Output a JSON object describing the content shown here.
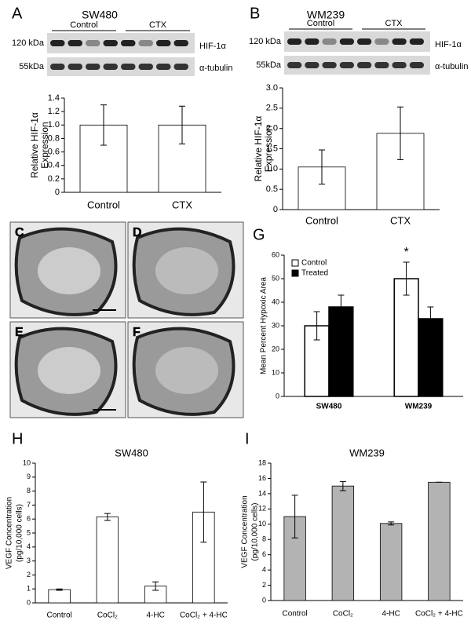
{
  "blots": [
    {
      "label": "A",
      "title": "SW480",
      "groups": [
        "Control",
        "CTX"
      ],
      "markers": [
        "120 kDa",
        "55kDa"
      ],
      "proteins": [
        "HIF-1α",
        "α-tubulin"
      ]
    },
    {
      "label": "B",
      "title": "WM239",
      "groups": [
        "Control",
        "CTX"
      ],
      "markers": [
        "120 kDa",
        "55kDa"
      ],
      "proteins": [
        "HIF-1α",
        "α-tubulin"
      ]
    }
  ],
  "images": [
    {
      "label": "C"
    },
    {
      "label": "D"
    },
    {
      "label": "E"
    },
    {
      "label": "F"
    }
  ],
  "chart_data": [
    {
      "type": "bar",
      "label": "A",
      "ylabel": [
        "Relative HIF-1α",
        "Expression"
      ],
      "categories": [
        "Control",
        "CTX"
      ],
      "values": [
        1.0,
        1.0
      ],
      "errors": [
        0.3,
        0.28
      ],
      "color": "#ffffff",
      "ylim": [
        0,
        1.4
      ],
      "yticks": [
        0,
        0.2,
        0.4,
        0.6,
        0.8,
        {
          "value": 1,
          "label": "1.0"
        },
        1.2,
        1.4
      ]
    },
    {
      "type": "bar",
      "label": "B",
      "ylabel": [
        "Relative HIF-1α",
        "Expression"
      ],
      "categories": [
        "Control",
        "CTX"
      ],
      "values": [
        1.05,
        1.88
      ],
      "errors": [
        0.42,
        0.65
      ],
      "color": "#ffffff",
      "ylim": [
        0,
        3
      ],
      "yticks": [
        0,
        0.5,
        {
          "value": 1,
          "label": "1.0"
        },
        1.5,
        {
          "value": 2,
          "label": "2.0"
        },
        2.5,
        {
          "value": 3,
          "label": "3.0"
        }
      ]
    },
    {
      "type": "bar",
      "label": "G",
      "ylabel": [
        "Mean Percent Hypoxic Area"
      ],
      "categories": [
        "SW480",
        "WM239"
      ],
      "series": [
        {
          "name": "Control",
          "color": "#ffffff",
          "values": [
            30,
            50
          ],
          "errors": [
            6,
            7
          ]
        },
        {
          "name": "Treated",
          "color": "#000000",
          "values": [
            38,
            33
          ],
          "errors": [
            5,
            5
          ]
        }
      ],
      "annotation": "*",
      "legend": "upper left",
      "ylim": [
        0,
        60
      ],
      "yticks": [
        0,
        10,
        20,
        30,
        40,
        50,
        60
      ]
    },
    {
      "type": "bar",
      "label": "H",
      "title": "SW480",
      "ylabel": [
        "VEGF Concentration",
        "(pg/10,000 cells)"
      ],
      "categories": [
        "Control",
        "CoCl₂",
        "4-HC",
        "CoCl₂ + 4-HC"
      ],
      "values": [
        0.95,
        6.15,
        1.2,
        6.5
      ],
      "errors": [
        0.05,
        0.25,
        0.3,
        2.15
      ],
      "color": "#ffffff",
      "ylim": [
        0,
        10
      ],
      "yticks": [
        0,
        1,
        2,
        3,
        4,
        5,
        6,
        7,
        8,
        9,
        10
      ]
    },
    {
      "type": "bar",
      "label": "I",
      "title": "WM239",
      "ylabel": [
        "VEGF Concentration",
        "(pg/10,000 cells)"
      ],
      "categories": [
        "Control",
        "CoCl₂",
        "4-HC",
        "CoCl₂ + 4-HC"
      ],
      "values": [
        11,
        15,
        10.1,
        15.5
      ],
      "errors": [
        2.8,
        0.6,
        0.2,
        0
      ],
      "color": "#b3b3b3",
      "ylim": [
        0,
        18
      ],
      "yticks": [
        0,
        2,
        4,
        6,
        8,
        10,
        12,
        14,
        16,
        18
      ]
    }
  ]
}
